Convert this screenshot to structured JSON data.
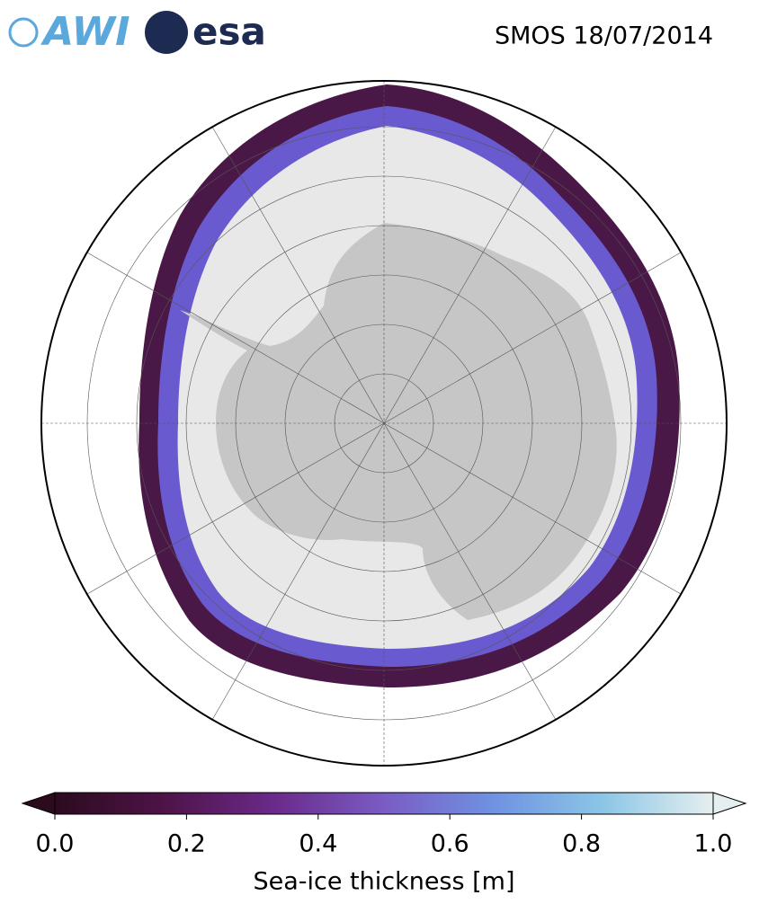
{
  "header": {
    "logos": [
      "AWI",
      "esa"
    ],
    "title": "SMOS 18/07/2014"
  },
  "colorbar": {
    "label": "Sea-ice thickness [m]",
    "lim": [
      0,
      1
    ],
    "ticks": [
      {
        "value": 0,
        "label": "0.0"
      },
      {
        "value": 0.2,
        "label": "0.2"
      },
      {
        "value": 0.4,
        "label": "0.4"
      },
      {
        "value": 0.6,
        "label": "0.6"
      },
      {
        "value": 0.8,
        "label": "0.8"
      },
      {
        "value": 1,
        "label": "1.0"
      }
    ],
    "colors": [
      "#2c0b1e",
      "#4e1348",
      "#6a2a8a",
      "#7a5cc4",
      "#6f92e2",
      "#8cc6e6",
      "#e6efef"
    ]
  }
}
